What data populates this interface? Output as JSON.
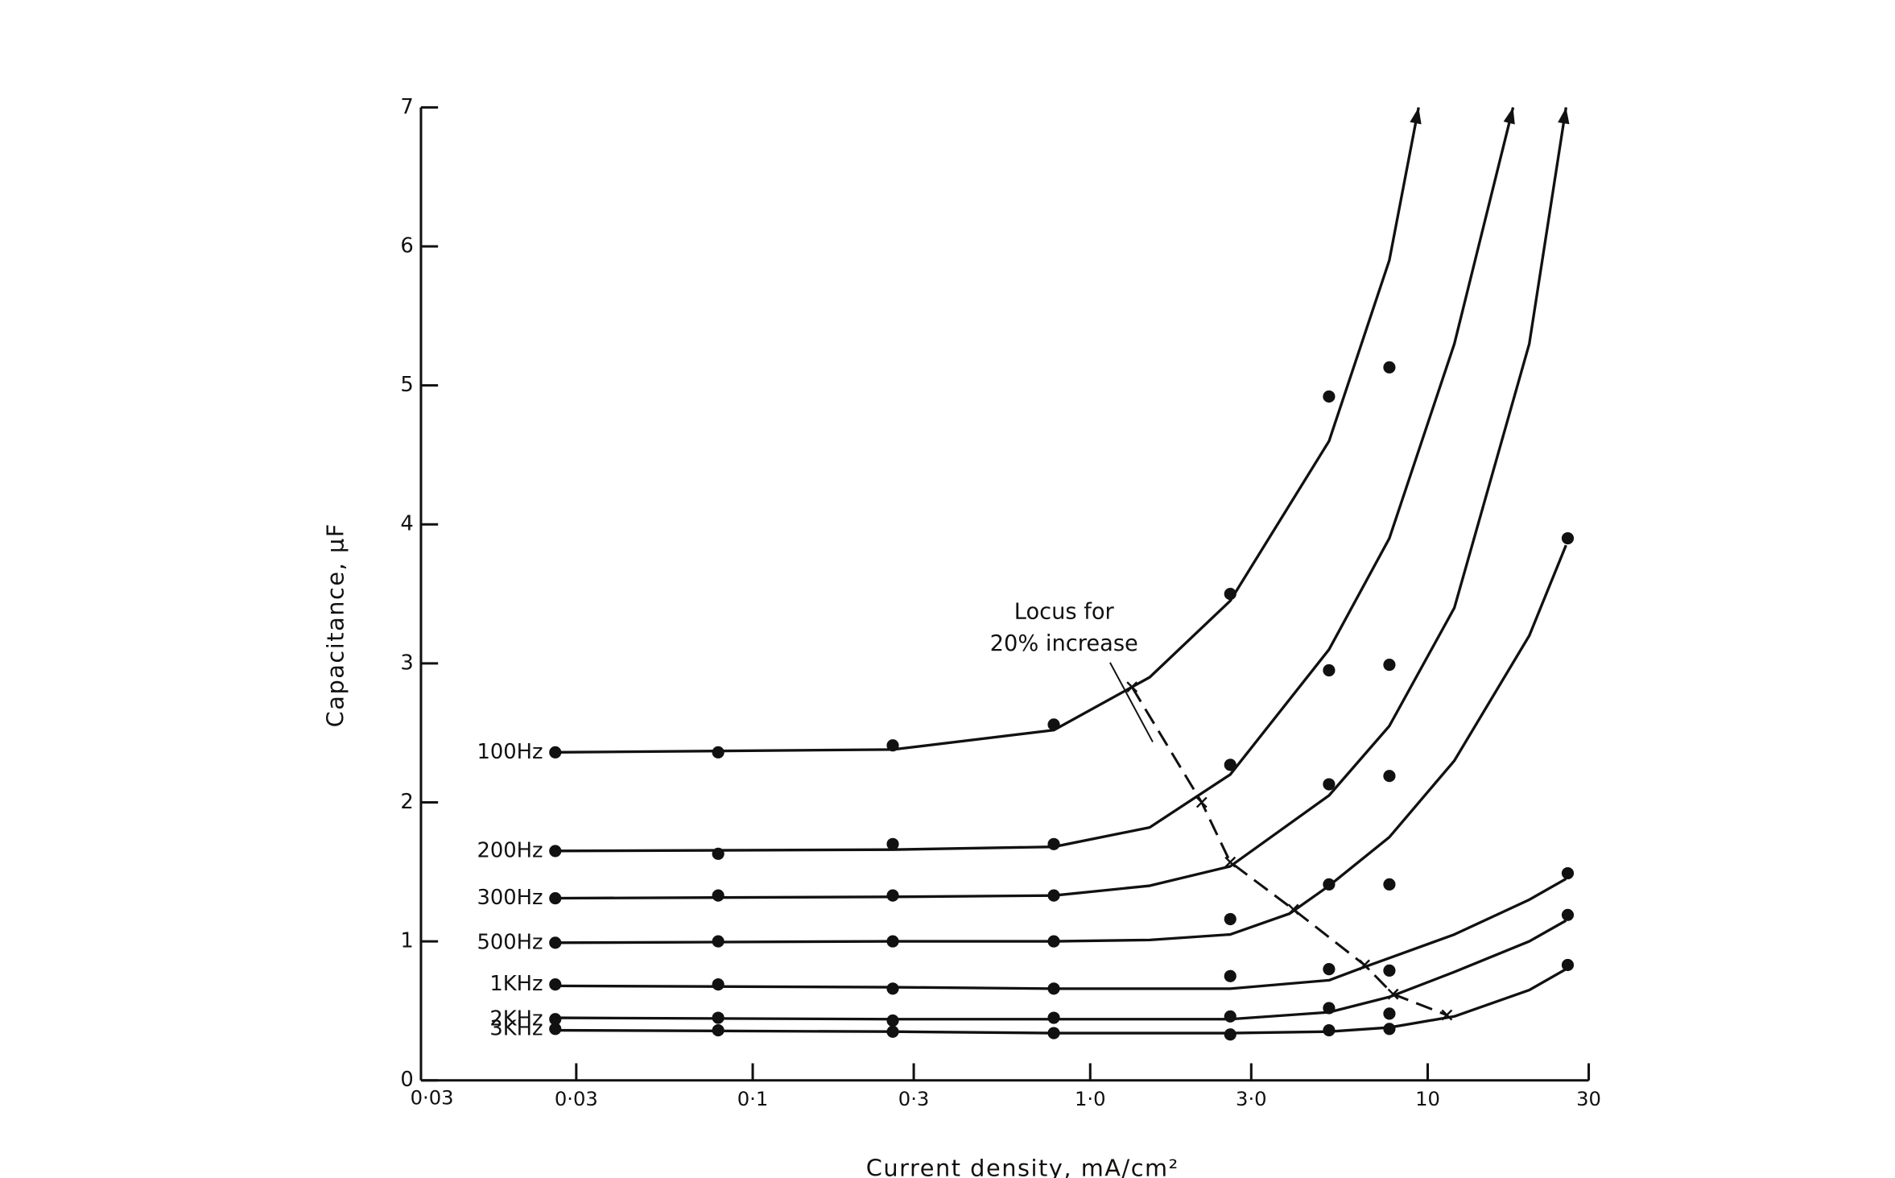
{
  "chart_data": {
    "type": "scatter",
    "x_label": "Current density,  mA/cm²",
    "y_label": "Capacitance,   μF",
    "corner_label": "0·03",
    "xscale": "log",
    "xlim": [
      0.0104,
      30
    ],
    "ylim": [
      0,
      7
    ],
    "xticks": [
      {
        "value": 0.03,
        "label": "0·03"
      },
      {
        "value": 0.1,
        "label": "0·1"
      },
      {
        "value": 0.3,
        "label": "0·3"
      },
      {
        "value": 1,
        "label": "1·0"
      },
      {
        "value": 3,
        "label": "3·0"
      },
      10,
      30
    ],
    "yticks": [
      0,
      1,
      2,
      3,
      4,
      5,
      6,
      7
    ],
    "x": [
      0.026,
      0.079,
      0.26,
      0.78,
      2.6,
      5.1,
      7.7,
      26
    ],
    "series": [
      {
        "name": "100Hz",
        "color": "#111111",
        "arrow": true,
        "values": [
          2.36,
          2.36,
          2.41,
          2.56,
          3.5,
          4.92,
          5.13,
          null
        ],
        "curve_x": [
          0.026,
          0.26,
          0.78,
          1.5,
          2.6,
          5.1,
          7.7,
          9.4
        ],
        "curve_values": [
          2.36,
          2.38,
          2.52,
          2.9,
          3.45,
          4.6,
          5.9,
          7
        ]
      },
      {
        "name": "200Hz",
        "color": "#111111",
        "arrow": true,
        "values": [
          1.65,
          1.63,
          1.7,
          1.7,
          2.27,
          2.95,
          2.99,
          null
        ],
        "curve_x": [
          0.026,
          0.26,
          0.78,
          1.5,
          2.6,
          5.1,
          7.7,
          12,
          17.9
        ],
        "curve_values": [
          1.65,
          1.66,
          1.68,
          1.82,
          2.2,
          3.1,
          3.9,
          5.3,
          7
        ]
      },
      {
        "name": "300Hz",
        "color": "#111111",
        "arrow": true,
        "values": [
          1.31,
          1.33,
          1.33,
          1.33,
          1.16,
          2.13,
          2.19,
          null
        ],
        "curve_x": [
          0.026,
          0.26,
          0.78,
          1.5,
          2.6,
          5.1,
          7.7,
          12,
          20,
          25.7
        ],
        "curve_values": [
          1.31,
          1.32,
          1.33,
          1.4,
          1.54,
          2.05,
          2.55,
          3.4,
          5.3,
          7
        ]
      },
      {
        "name": "500Hz",
        "color": "#111111",
        "arrow": false,
        "values": [
          0.99,
          1.0,
          1.0,
          1.0,
          null,
          1.41,
          1.41,
          3.9
        ],
        "curve_x": [
          0.026,
          0.26,
          0.78,
          1.5,
          2.6,
          3.9,
          5.1,
          7.7,
          12,
          20,
          25.7
        ],
        "curve_values": [
          0.99,
          1.0,
          1.0,
          1.01,
          1.05,
          1.2,
          1.4,
          1.75,
          2.3,
          3.2,
          3.85
        ]
      },
      {
        "name": "1KHz",
        "color": "#111111",
        "arrow": false,
        "values": [
          0.69,
          0.69,
          0.66,
          0.66,
          0.75,
          0.8,
          0.79,
          1.49
        ],
        "curve_x": [
          0.026,
          0.26,
          0.78,
          2.6,
          5.1,
          6.4,
          7.7,
          12,
          20,
          25.7
        ],
        "curve_values": [
          0.68,
          0.67,
          0.66,
          0.66,
          0.72,
          0.81,
          0.88,
          1.05,
          1.3,
          1.45
        ]
      },
      {
        "name": "2KHz",
        "color": "#111111",
        "arrow": false,
        "values": [
          0.44,
          0.45,
          0.43,
          0.45,
          0.46,
          0.52,
          0.48,
          1.19
        ],
        "curve_x": [
          0.026,
          0.26,
          0.78,
          2.6,
          5.1,
          7.7,
          12,
          20,
          25.7
        ],
        "curve_values": [
          0.45,
          0.44,
          0.44,
          0.44,
          0.49,
          0.6,
          0.78,
          1.0,
          1.15
        ]
      },
      {
        "name": "3KHz",
        "color": "#111111",
        "arrow": false,
        "values": [
          0.37,
          0.36,
          0.35,
          0.34,
          0.33,
          0.36,
          0.37,
          0.83
        ],
        "curve_x": [
          0.026,
          0.26,
          0.78,
          2.6,
          5.1,
          7.7,
          12,
          20,
          25.7
        ],
        "curve_values": [
          0.36,
          0.35,
          0.34,
          0.34,
          0.35,
          0.38,
          0.46,
          0.65,
          0.8
        ]
      }
    ],
    "locus": {
      "label": [
        "Locus for",
        "20% increase"
      ],
      "x": [
        1.33,
        2.14,
        2.6,
        4.0,
        6.5,
        7.9,
        11.4
      ],
      "values": [
        2.83,
        2.0,
        1.57,
        1.23,
        0.83,
        0.62,
        0.47
      ]
    }
  }
}
